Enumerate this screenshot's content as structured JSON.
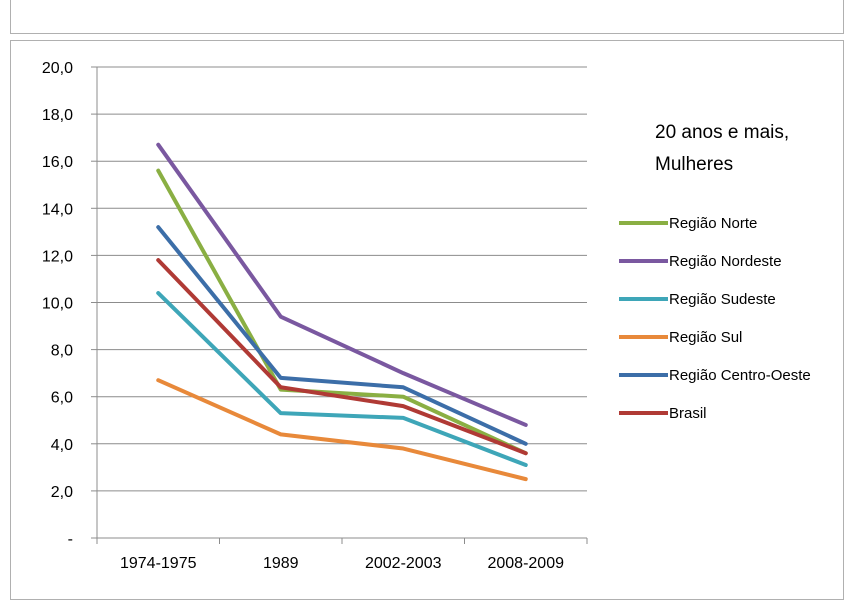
{
  "previous_chart_fragment": {
    "x_tick_labels": [
      "1974-1975",
      "1989",
      "2002-2003",
      "2008-2009"
    ]
  },
  "chart_data": {
    "type": "line",
    "title": "20 anos e mais,\nMulheres",
    "title_lines": [
      "20 anos e mais,",
      "Mulheres"
    ],
    "xlabel": "",
    "ylabel": "",
    "categories": [
      "1974-1975",
      "1989",
      "2002-2003",
      "2008-2009"
    ],
    "y_ticks": [
      0,
      2,
      4,
      6,
      8,
      10,
      12,
      14,
      16,
      18,
      20
    ],
    "y_tick_labels": [
      "-",
      "2,0",
      "4,0",
      "6,0",
      "8,0",
      "10,0",
      "12,0",
      "14,0",
      "16,0",
      "18,0",
      "20,0"
    ],
    "ylim": [
      0,
      20
    ],
    "grid": true,
    "legend_position": "right",
    "series": [
      {
        "name": "Região Norte",
        "color": "#8aaf43",
        "values": [
          15.6,
          6.3,
          6.0,
          3.6
        ]
      },
      {
        "name": "Região Nordeste",
        "color": "#7a58a0",
        "values": [
          16.7,
          9.4,
          7.0,
          4.8
        ]
      },
      {
        "name": "Região Sudeste",
        "color": "#3ea6b8",
        "values": [
          10.4,
          5.3,
          5.1,
          3.1
        ]
      },
      {
        "name": "Região Sul",
        "color": "#e8893a",
        "values": [
          6.7,
          4.4,
          3.8,
          2.5
        ]
      },
      {
        "name": "Região Centro-Oeste",
        "color": "#3c6ea8",
        "values": [
          13.2,
          6.8,
          6.4,
          4.0
        ]
      },
      {
        "name": "Brasil",
        "color": "#b03a35",
        "values": [
          11.8,
          6.4,
          5.6,
          3.6
        ]
      }
    ]
  }
}
